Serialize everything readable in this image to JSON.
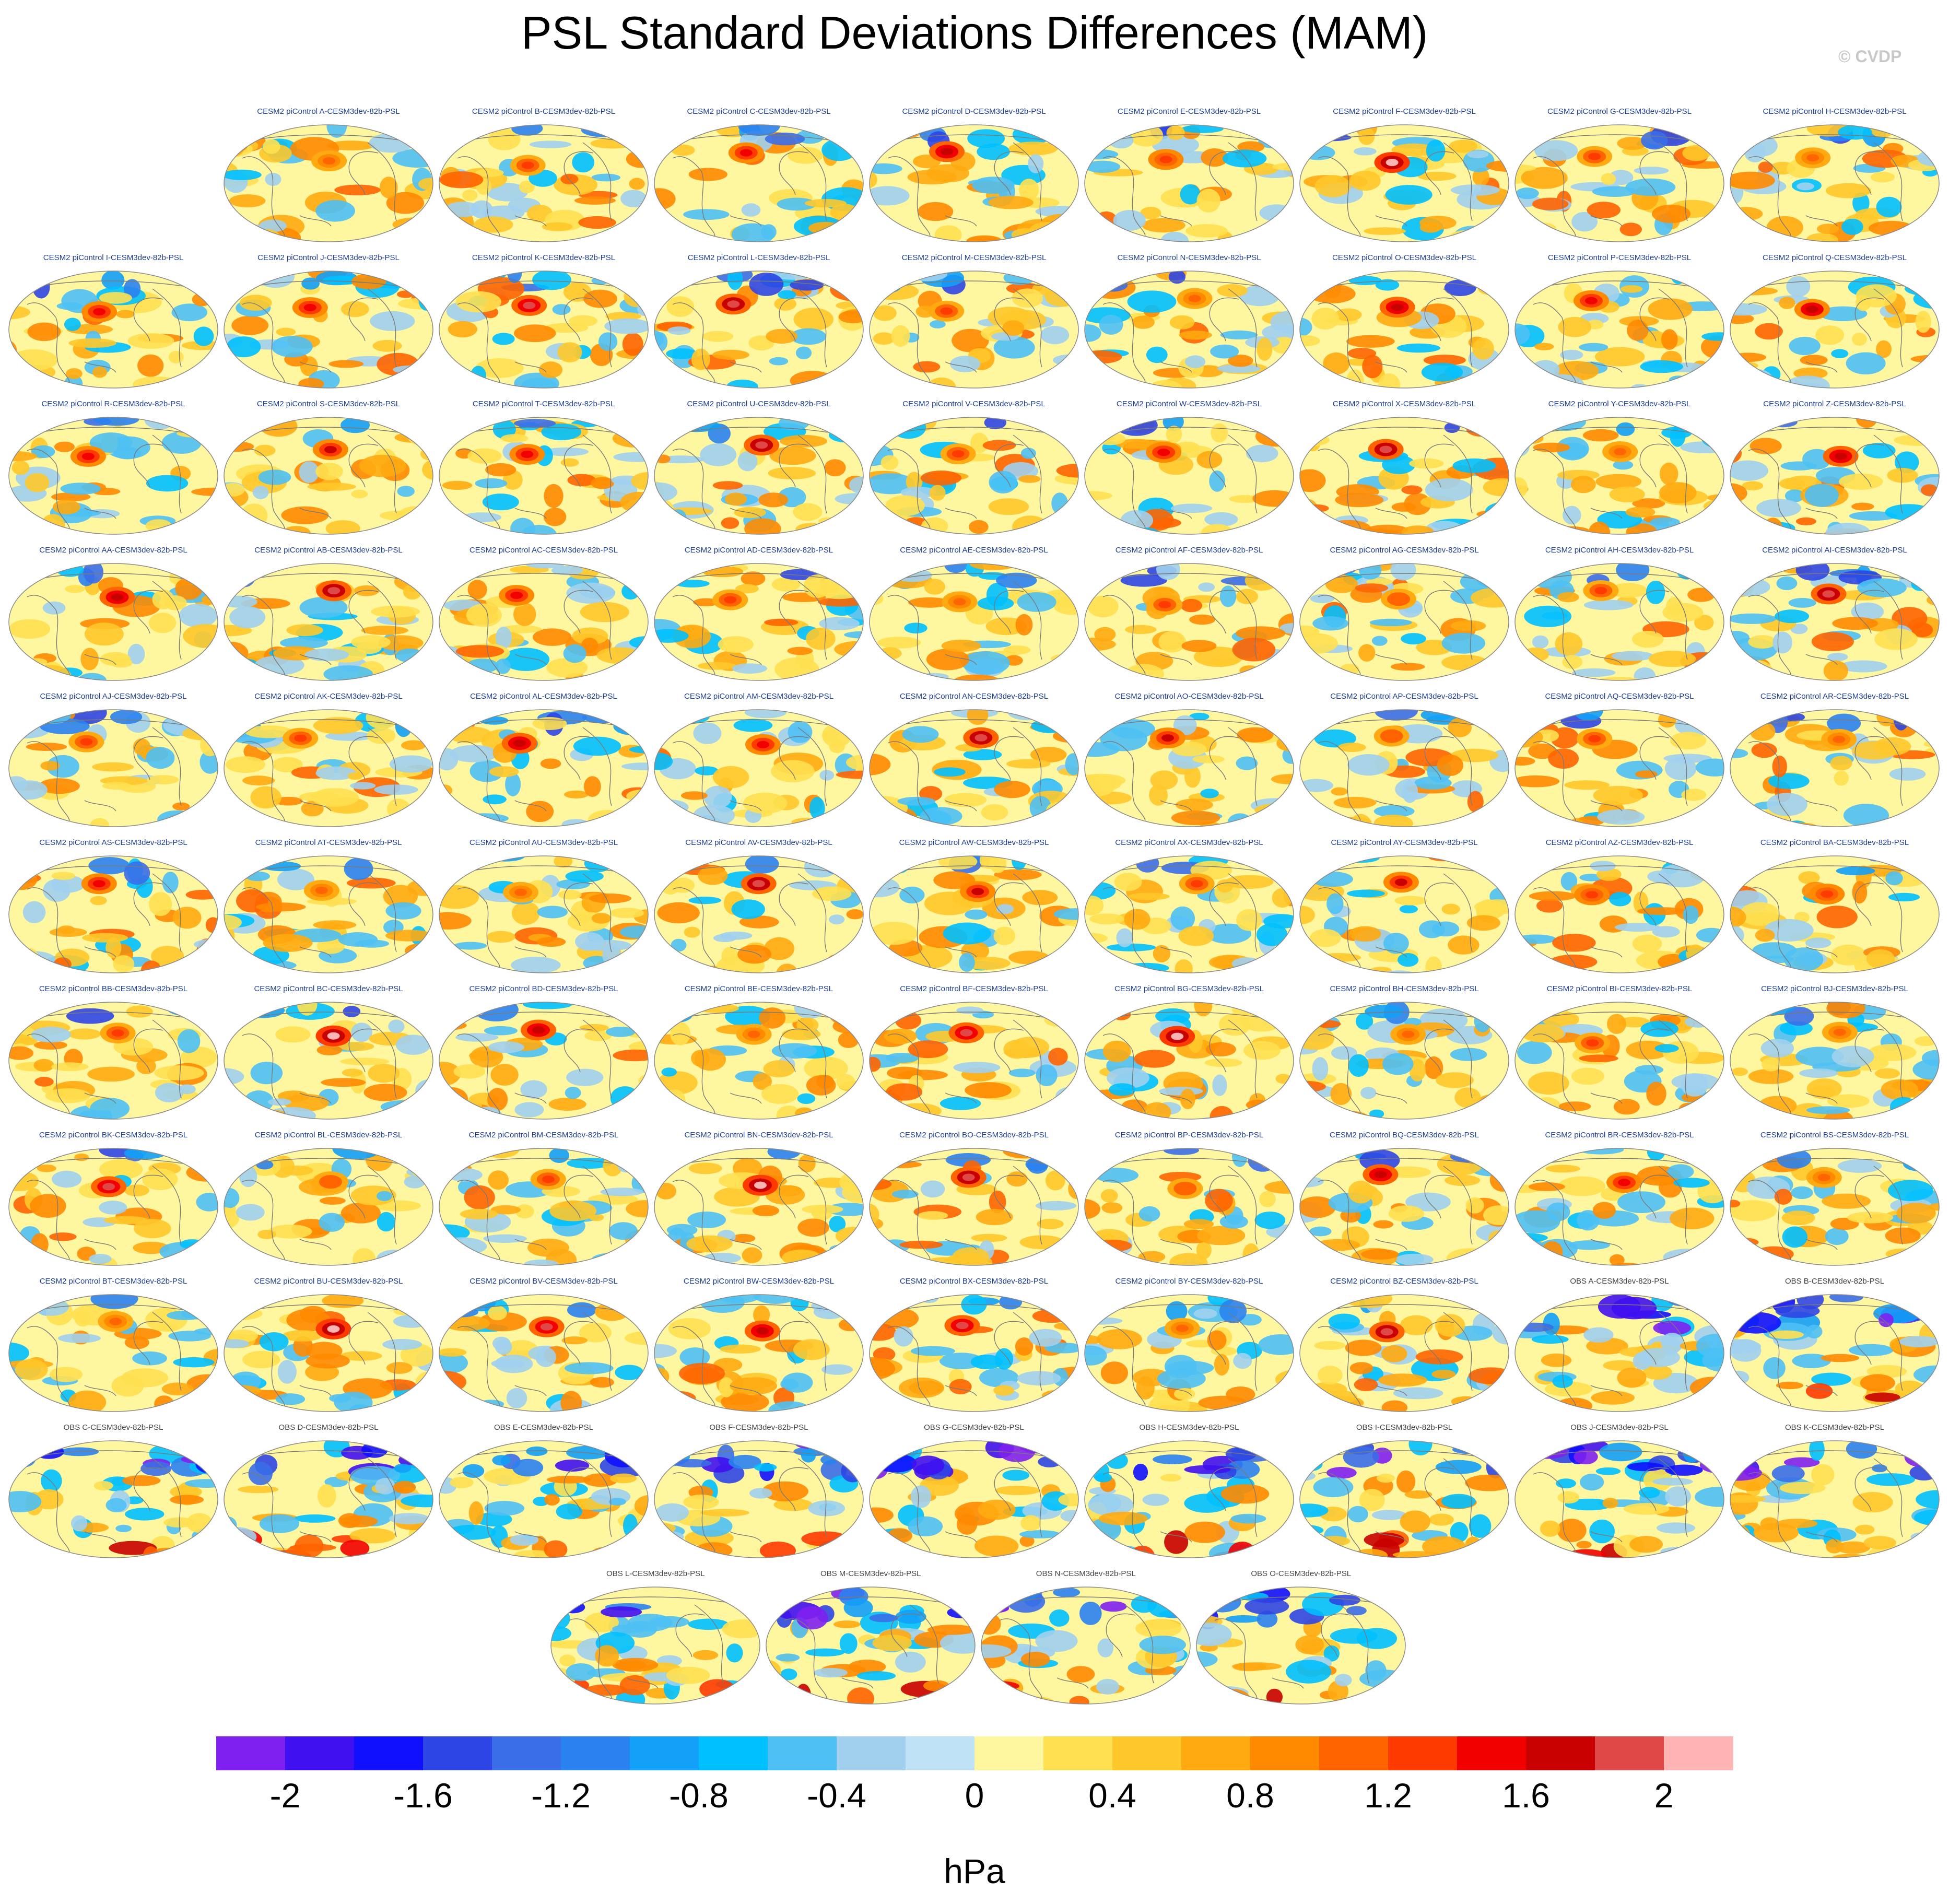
{
  "figure": {
    "title": "PSL Standard Deviations Differences (MAM)",
    "watermark": "© CVDP",
    "units_label": "hPa"
  },
  "chart_data": {
    "type": "heatmap",
    "title": "PSL Standard Deviations Differences (MAM)",
    "projection": "Robinson global map (Pacific-centered)",
    "variable": "PSL",
    "season": "MAM",
    "units": "hPa",
    "color_levels": [
      -2.2,
      -2.0,
      -1.8,
      -1.6,
      -1.4,
      -1.2,
      -1.0,
      -0.8,
      -0.6,
      -0.4,
      -0.2,
      0.0,
      0.2,
      0.4,
      0.6,
      0.8,
      1.0,
      1.2,
      1.4,
      1.6,
      1.8,
      2.0,
      2.2
    ],
    "colorbar_tick_labels": [
      "-2",
      "-1.6",
      "-1.2",
      "-0.8",
      "-0.4",
      "0",
      "0.4",
      "0.8",
      "1.2",
      "1.6",
      "2"
    ],
    "colorbar_tick_values": [
      -2,
      -1.6,
      -1.2,
      -0.8,
      -0.4,
      0,
      0.4,
      0.8,
      1.2,
      1.6,
      2
    ],
    "colorbar_range": [
      -2.2,
      2.2
    ],
    "colors": [
      "#8020f0",
      "#4010f0",
      "#1010ff",
      "#2d45e4",
      "#3a6ee8",
      "#2a82f0",
      "#12a0f8",
      "#00c0ff",
      "#4ec0f4",
      "#a0d0ee",
      "#c0e2f6",
      "#fff6a0",
      "#ffe050",
      "#ffc82a",
      "#ffaa10",
      "#ff8a00",
      "#ff6400",
      "#ff3a00",
      "#f20000",
      "#c80000",
      "#e04848",
      "#ffb4b4"
    ],
    "panels": [
      "CESM2 piControl A-CESM3dev-82b-PSL",
      "CESM2 piControl B-CESM3dev-82b-PSL",
      "CESM2 piControl C-CESM3dev-82b-PSL",
      "CESM2 piControl D-CESM3dev-82b-PSL",
      "CESM2 piControl E-CESM3dev-82b-PSL",
      "CESM2 piControl F-CESM3dev-82b-PSL",
      "CESM2 piControl G-CESM3dev-82b-PSL",
      "CESM2 piControl H-CESM3dev-82b-PSL",
      "CESM2 piControl I-CESM3dev-82b-PSL",
      "CESM2 piControl J-CESM3dev-82b-PSL",
      "CESM2 piControl K-CESM3dev-82b-PSL",
      "CESM2 piControl L-CESM3dev-82b-PSL",
      "CESM2 piControl M-CESM3dev-82b-PSL",
      "CESM2 piControl N-CESM3dev-82b-PSL",
      "CESM2 piControl O-CESM3dev-82b-PSL",
      "CESM2 piControl P-CESM3dev-82b-PSL",
      "CESM2 piControl Q-CESM3dev-82b-PSL",
      "CESM2 piControl R-CESM3dev-82b-PSL",
      "CESM2 piControl S-CESM3dev-82b-PSL",
      "CESM2 piControl T-CESM3dev-82b-PSL",
      "CESM2 piControl U-CESM3dev-82b-PSL",
      "CESM2 piControl V-CESM3dev-82b-PSL",
      "CESM2 piControl W-CESM3dev-82b-PSL",
      "CESM2 piControl X-CESM3dev-82b-PSL",
      "CESM2 piControl Y-CESM3dev-82b-PSL",
      "CESM2 piControl Z-CESM3dev-82b-PSL",
      "CESM2 piControl AA-CESM3dev-82b-PSL",
      "CESM2 piControl AB-CESM3dev-82b-PSL",
      "CESM2 piControl AC-CESM3dev-82b-PSL",
      "CESM2 piControl AD-CESM3dev-82b-PSL",
      "CESM2 piControl AE-CESM3dev-82b-PSL",
      "CESM2 piControl AF-CESM3dev-82b-PSL",
      "CESM2 piControl AG-CESM3dev-82b-PSL",
      "CESM2 piControl AH-CESM3dev-82b-PSL",
      "CESM2 piControl AI-CESM3dev-82b-PSL",
      "CESM2 piControl AJ-CESM3dev-82b-PSL",
      "CESM2 piControl AK-CESM3dev-82b-PSL",
      "CESM2 piControl AL-CESM3dev-82b-PSL",
      "CESM2 piControl AM-CESM3dev-82b-PSL",
      "CESM2 piControl AN-CESM3dev-82b-PSL",
      "CESM2 piControl AO-CESM3dev-82b-PSL",
      "CESM2 piControl AP-CESM3dev-82b-PSL",
      "CESM2 piControl AQ-CESM3dev-82b-PSL",
      "CESM2 piControl AR-CESM3dev-82b-PSL",
      "CESM2 piControl AS-CESM3dev-82b-PSL",
      "CESM2 piControl AT-CESM3dev-82b-PSL",
      "CESM2 piControl AU-CESM3dev-82b-PSL",
      "CESM2 piControl AV-CESM3dev-82b-PSL",
      "CESM2 piControl AW-CESM3dev-82b-PSL",
      "CESM2 piControl AX-CESM3dev-82b-PSL",
      "CESM2 piControl AY-CESM3dev-82b-PSL",
      "CESM2 piControl AZ-CESM3dev-82b-PSL",
      "CESM2 piControl BA-CESM3dev-82b-PSL",
      "CESM2 piControl BB-CESM3dev-82b-PSL",
      "CESM2 piControl BC-CESM3dev-82b-PSL",
      "CESM2 piControl BD-CESM3dev-82b-PSL",
      "CESM2 piControl BE-CESM3dev-82b-PSL",
      "CESM2 piControl BF-CESM3dev-82b-PSL",
      "CESM2 piControl BG-CESM3dev-82b-PSL",
      "CESM2 piControl BH-CESM3dev-82b-PSL",
      "CESM2 piControl BI-CESM3dev-82b-PSL",
      "CESM2 piControl BJ-CESM3dev-82b-PSL",
      "CESM2 piControl BK-CESM3dev-82b-PSL",
      "CESM2 piControl BL-CESM3dev-82b-PSL",
      "CESM2 piControl BM-CESM3dev-82b-PSL",
      "CESM2 piControl BN-CESM3dev-82b-PSL",
      "CESM2 piControl BO-CESM3dev-82b-PSL",
      "CESM2 piControl BP-CESM3dev-82b-PSL",
      "CESM2 piControl BQ-CESM3dev-82b-PSL",
      "CESM2 piControl BR-CESM3dev-82b-PSL",
      "CESM2 piControl BS-CESM3dev-82b-PSL",
      "CESM2 piControl BT-CESM3dev-82b-PSL",
      "CESM2 piControl BU-CESM3dev-82b-PSL",
      "CESM2 piControl BV-CESM3dev-82b-PSL",
      "CESM2 piControl BW-CESM3dev-82b-PSL",
      "CESM2 piControl BX-CESM3dev-82b-PSL",
      "CESM2 piControl BY-CESM3dev-82b-PSL",
      "CESM2 piControl BZ-CESM3dev-82b-PSL",
      "OBS A-CESM3dev-82b-PSL",
      "OBS B-CESM3dev-82b-PSL",
      "OBS C-CESM3dev-82b-PSL",
      "OBS D-CESM3dev-82b-PSL",
      "OBS E-CESM3dev-82b-PSL",
      "OBS F-CESM3dev-82b-PSL",
      "OBS G-CESM3dev-82b-PSL",
      "OBS H-CESM3dev-82b-PSL",
      "OBS I-CESM3dev-82b-PSL",
      "OBS J-CESM3dev-82b-PSL",
      "OBS K-CESM3dev-82b-PSL",
      "OBS L-CESM3dev-82b-PSL",
      "OBS M-CESM3dev-82b-PSL",
      "OBS N-CESM3dev-82b-PSL",
      "OBS O-CESM3dev-82b-PSL"
    ],
    "grid_rows": [
      8,
      9,
      9,
      9,
      9,
      9,
      9,
      9,
      9,
      9,
      4
    ]
  }
}
